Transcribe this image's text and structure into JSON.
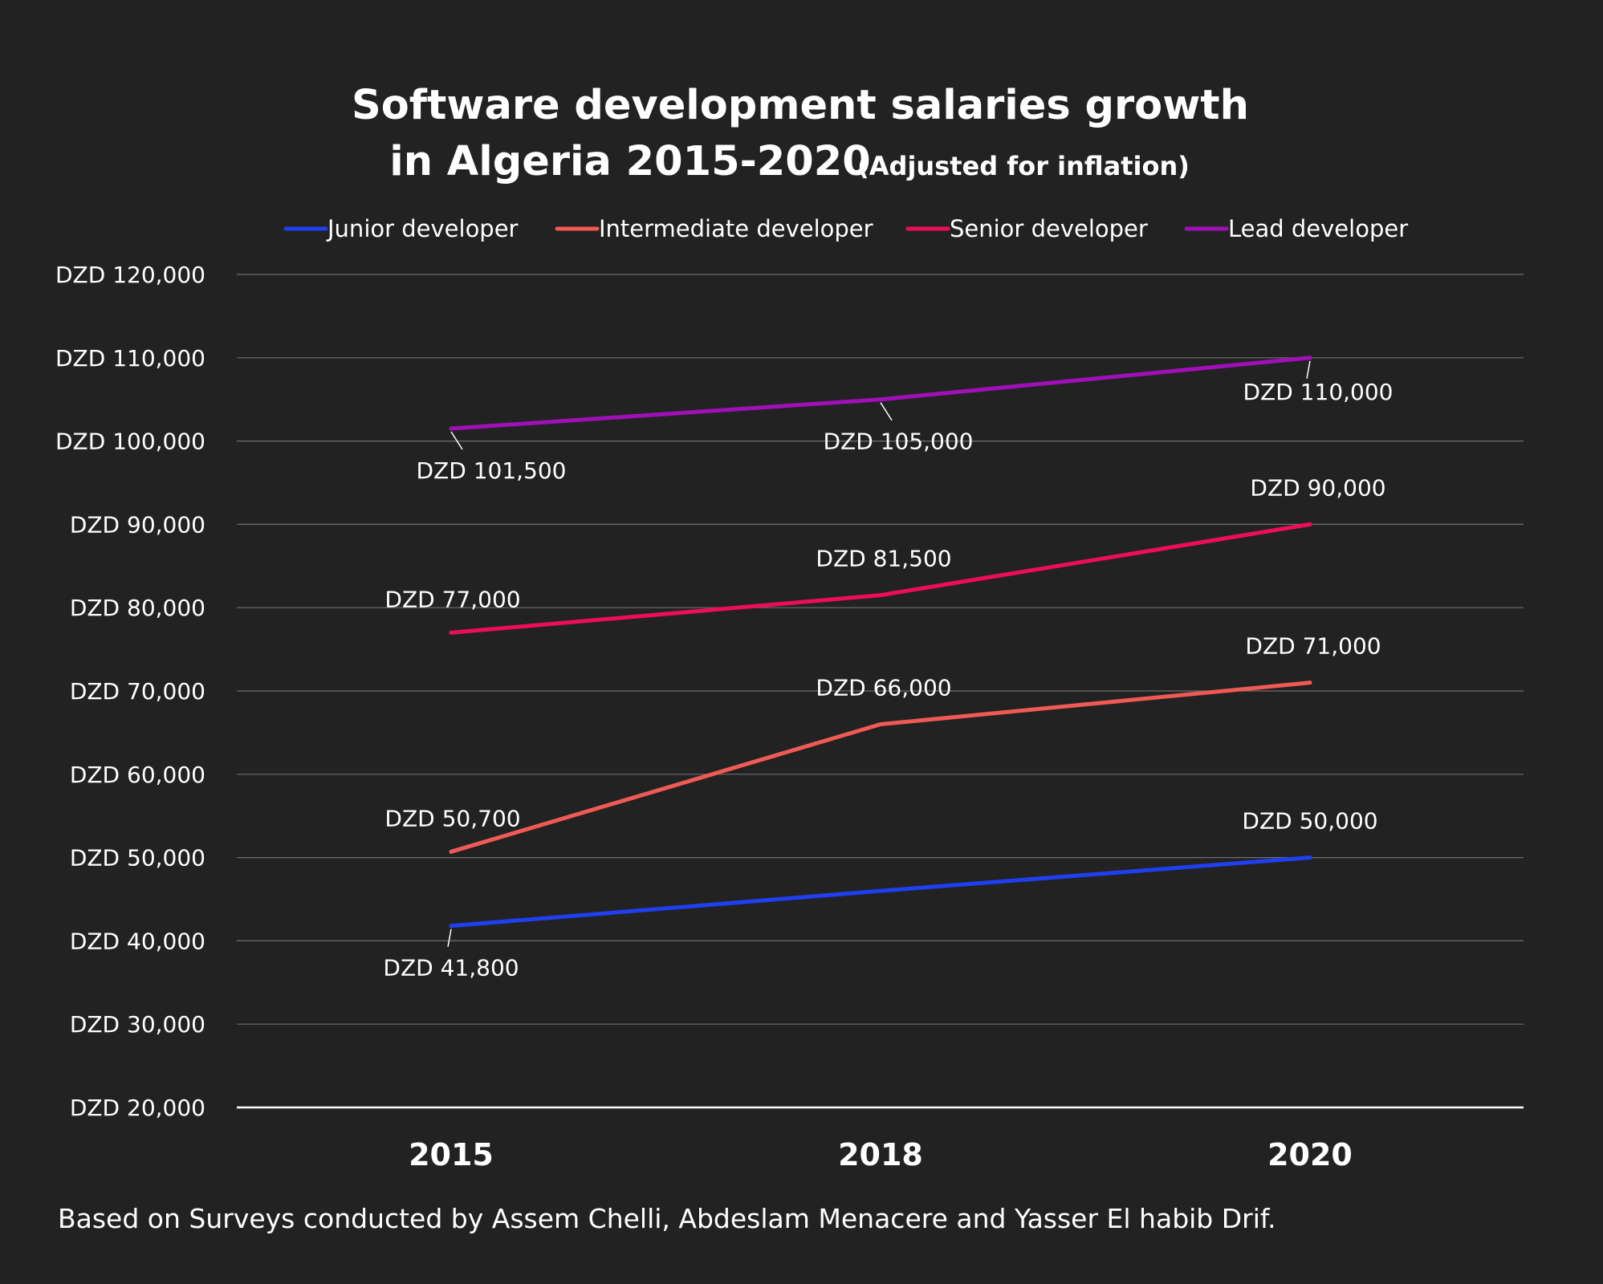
{
  "chart_data": {
    "type": "line",
    "title_line1": "Software development salaries growth",
    "title_line2": "in Algeria 2015-2020",
    "subtitle": "(Adjusted for inflation)",
    "source": "Based on Surveys conducted by Assem Chelli, Abdeslam Menacere and Yasser El habib Drif.",
    "x": [
      "2015",
      "2018",
      "2020"
    ],
    "ylim": [
      20000,
      120000
    ],
    "yticks": [
      "DZD 20,000",
      "DZD 30,000",
      "DZD 40,000",
      "DZD 50,000",
      "DZD 60,000",
      "DZD 70,000",
      "DZD 80,000",
      "DZD 90,000",
      "DZD 100,000",
      "DZD 110,000",
      "DZD 120,000"
    ],
    "grid": true,
    "legend_position": "top",
    "series": [
      {
        "name": "Junior developer",
        "color": "#1f3ff0",
        "values": [
          41800,
          46000,
          50000
        ],
        "labels": [
          "DZD 41,800",
          "",
          "DZD 50,000"
        ]
      },
      {
        "name": "Intermediate developer",
        "color": "#f05a55",
        "values": [
          50700,
          66000,
          71000
        ],
        "labels": [
          "DZD 50,700",
          "DZD 66,000",
          "DZD 71,000"
        ]
      },
      {
        "name": "Senior developer",
        "color": "#ee0d5a",
        "values": [
          77000,
          81500,
          90000
        ],
        "labels": [
          "DZD 77,000",
          "DZD 81,500",
          "DZD 90,000"
        ]
      },
      {
        "name": "Lead developer",
        "color": "#a010b8",
        "values": [
          101500,
          105000,
          110000
        ],
        "labels": [
          "DZD 101,500",
          "DZD 105,000",
          "DZD 110,000"
        ]
      }
    ]
  }
}
